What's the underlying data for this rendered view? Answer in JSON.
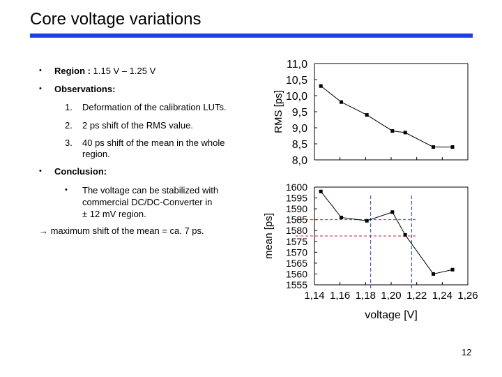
{
  "slide": {
    "title": "Core voltage variations",
    "bar_color": "#1f3fe0",
    "page_number": "12"
  },
  "content": {
    "region_label": "Region :",
    "region_value": "1.15 V – 1.25 V",
    "observations_label": "Observations:",
    "observations": [
      {
        "num": "1.",
        "text": "Deformation of the calibration LUTs."
      },
      {
        "num": "2.",
        "text": "2 ps shift of the RMS value."
      },
      {
        "num": "3.",
        "text": "40 ps shift of the mean in the whole region.",
        "line1": "40 ps shift of the mean in the whole",
        "line2": "region."
      }
    ],
    "conclusion_label": "Conclusion:",
    "conclusion_text": {
      "line1": "The voltage can be stabilized with",
      "line2": "commercial DC/DC-Converter in",
      "line3": "± 12 mV region."
    },
    "arrow_glyph": "→",
    "result": "maximum shift of the mean = ca. 7 ps."
  },
  "chart_data": [
    {
      "type": "line",
      "ylabel": "RMS [ps]",
      "ylim": [
        8.0,
        11.0
      ],
      "yticks": [
        "11,0",
        "10,5",
        "10,0",
        "9,5",
        "9,0",
        "8,5",
        "8,0"
      ],
      "x": [
        1.145,
        1.161,
        1.181,
        1.201,
        1.211,
        1.233,
        1.248
      ],
      "y": [
        10.3,
        9.8,
        9.4,
        8.9,
        8.85,
        8.4,
        8.4
      ],
      "line_color": "#000000"
    },
    {
      "type": "line",
      "ylabel": "mean [ps]",
      "xlabel": "voltage [V]",
      "xlim": [
        1.14,
        1.26
      ],
      "ylim": [
        1555,
        1600
      ],
      "yticks": [
        "1600",
        "1595",
        "1590",
        "1585",
        "1580",
        "1575",
        "1570",
        "1565",
        "1560",
        "1555"
      ],
      "xticks": [
        "1,14",
        "1,16",
        "1,18",
        "1,20",
        "1,22",
        "1,24",
        "1,26"
      ],
      "x": [
        1.145,
        1.161,
        1.181,
        1.201,
        1.211,
        1.233,
        1.248
      ],
      "y": [
        1598,
        1586,
        1584.5,
        1588.5,
        1578,
        1560,
        1562
      ],
      "vlines_x": [
        1.184,
        1.216
      ],
      "vline_color": "#1f3fb0",
      "hlines_y": [
        1585,
        1577.5
      ],
      "hline_color": "#d62020"
    }
  ]
}
